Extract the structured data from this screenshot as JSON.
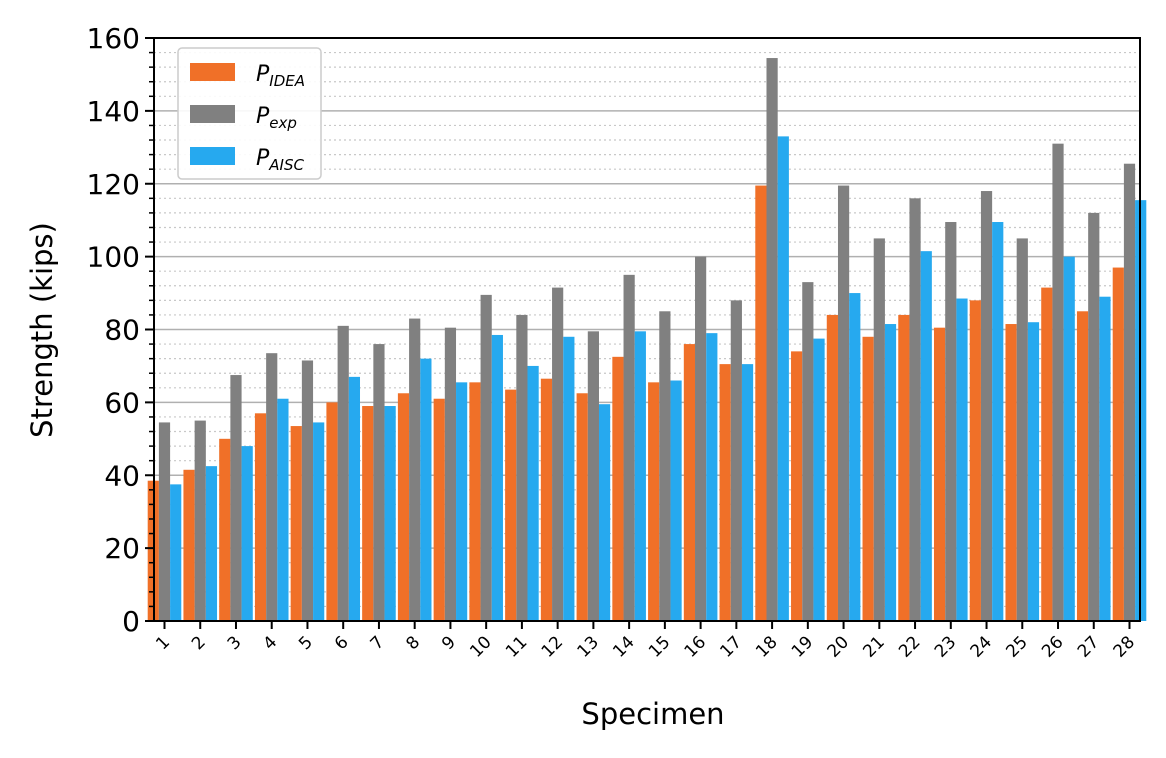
{
  "chart_data": {
    "type": "bar",
    "xlabel": "Specimen",
    "ylabel": "Strength (kips)",
    "ylim": [
      0,
      160
    ],
    "yticks": [
      0,
      20,
      40,
      60,
      80,
      100,
      120,
      140,
      160
    ],
    "grid": "major solid, minor dotted (y axis)",
    "legend_position": "top-left",
    "categories": [
      "1",
      "2",
      "3",
      "4",
      "5",
      "6",
      "7",
      "8",
      "9",
      "10",
      "11",
      "12",
      "13",
      "14",
      "15",
      "16",
      "17",
      "18",
      "19",
      "20",
      "21",
      "22",
      "23",
      "24",
      "25",
      "26",
      "27",
      "28"
    ],
    "series": [
      {
        "name": "P",
        "subscript": "IDEA",
        "color": "#f07028",
        "values": [
          38.5,
          41.5,
          50,
          57,
          53.5,
          60,
          59,
          62.5,
          61,
          65.5,
          63.5,
          66.5,
          62.5,
          72.5,
          65.5,
          76,
          70.5,
          119.5,
          74,
          84,
          78,
          84,
          80.5,
          88,
          81.5,
          91.5,
          85,
          97
        ]
      },
      {
        "name": "P",
        "subscript": "exp",
        "color": "#808080",
        "values": [
          54.5,
          55,
          67.5,
          73.5,
          71.5,
          81,
          76,
          83,
          80.5,
          89.5,
          84,
          91.5,
          79.5,
          95,
          85,
          100,
          88,
          154.5,
          93,
          119.5,
          105,
          116,
          109.5,
          118,
          105,
          131,
          112,
          125.5
        ]
      },
      {
        "name": "P",
        "subscript": "AISC",
        "color": "#26a9ef",
        "values": [
          37.5,
          42.5,
          48,
          61,
          54.5,
          67,
          59,
          72,
          65.5,
          78.5,
          70,
          78,
          59.5,
          79.5,
          66,
          79,
          70.5,
          133,
          77.5,
          90,
          81.5,
          101.5,
          88.5,
          109.5,
          82,
          100,
          89,
          115.5
        ]
      }
    ]
  }
}
